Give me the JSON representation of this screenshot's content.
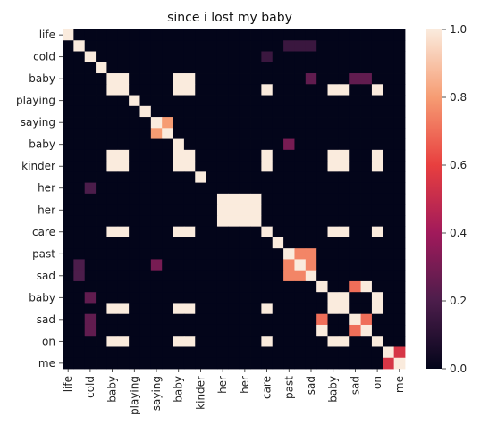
{
  "chart_data": {
    "type": "heatmap",
    "title": "since i lost my baby",
    "row_labels": [
      "life",
      "",
      "cold",
      "",
      "baby",
      "",
      "playing",
      "",
      "saying",
      "",
      "baby",
      "",
      "kinder",
      "",
      "her",
      "",
      "her",
      "",
      "care",
      "",
      "past",
      "",
      "sad",
      "",
      "baby",
      "",
      "sad",
      "",
      "on",
      "",
      "me"
    ],
    "col_labels": [
      "life",
      "",
      "cold",
      "",
      "baby",
      "",
      "playing",
      "",
      "saying",
      "",
      "baby",
      "",
      "kinder",
      "",
      "her",
      "",
      "her",
      "",
      "care",
      "",
      "past",
      "",
      "sad",
      "",
      "baby",
      "",
      "sad",
      "",
      "on",
      "",
      "me"
    ],
    "values": [
      [
        1,
        0,
        0,
        0,
        0,
        0,
        0,
        0,
        0,
        0,
        0,
        0,
        0,
        0,
        0,
        0,
        0,
        0,
        0,
        0,
        0,
        0,
        0,
        0,
        0,
        0,
        0,
        0,
        0,
        0,
        0
      ],
      [
        0,
        1,
        0,
        0,
        0,
        0,
        0,
        0,
        0,
        0,
        0,
        0,
        0,
        0,
        0,
        0,
        0,
        0,
        0,
        0,
        0.15,
        0.15,
        0.15,
        0,
        0,
        0,
        0,
        0,
        0,
        0,
        0
      ],
      [
        0,
        0,
        1,
        0,
        0,
        0,
        0,
        0,
        0,
        0,
        0,
        0,
        0,
        0,
        0,
        0,
        0,
        0,
        0.15,
        0,
        0,
        0,
        0,
        0,
        0,
        0,
        0,
        0,
        0,
        0,
        0
      ],
      [
        0,
        0,
        0,
        1,
        0,
        0,
        0,
        0,
        0,
        0,
        0,
        0,
        0,
        0,
        0,
        0,
        0,
        0,
        0,
        0,
        0,
        0,
        0,
        0,
        0,
        0,
        0,
        0,
        0,
        0,
        0
      ],
      [
        0,
        0,
        0,
        0,
        1,
        1,
        0,
        0,
        0,
        0,
        1,
        1,
        0,
        0,
        0,
        0,
        0,
        0,
        0,
        0,
        0,
        0,
        0.25,
        0,
        0,
        0,
        0.25,
        0.25,
        0,
        0,
        0
      ],
      [
        0,
        0,
        0,
        0,
        1,
        1,
        0,
        0,
        0,
        0,
        1,
        1,
        0,
        0,
        0,
        0,
        0,
        0,
        1,
        0,
        0,
        0,
        0,
        0,
        1,
        1,
        0,
        0,
        1,
        0,
        0
      ],
      [
        0,
        0,
        0,
        0,
        0,
        0,
        1,
        0,
        0,
        0,
        0,
        0,
        0,
        0,
        0,
        0,
        0,
        0,
        0,
        0,
        0,
        0,
        0,
        0,
        0,
        0,
        0,
        0,
        0,
        0,
        0
      ],
      [
        0,
        0,
        0,
        0,
        0,
        0,
        0,
        1,
        0,
        0,
        0,
        0,
        0,
        0,
        0,
        0,
        0,
        0,
        0,
        0,
        0,
        0,
        0,
        0,
        0,
        0,
        0,
        0,
        0,
        0,
        0
      ],
      [
        0,
        0,
        0,
        0,
        0,
        0,
        0,
        0,
        1,
        0.8,
        0,
        0,
        0,
        0,
        0,
        0,
        0,
        0,
        0,
        0,
        0,
        0,
        0,
        0,
        0,
        0,
        0,
        0,
        0,
        0,
        0
      ],
      [
        0,
        0,
        0,
        0,
        0,
        0,
        0,
        0,
        0.8,
        1,
        0,
        0,
        0,
        0,
        0,
        0,
        0,
        0,
        0,
        0,
        0,
        0,
        0,
        0,
        0,
        0,
        0,
        0,
        0,
        0,
        0
      ],
      [
        0,
        0,
        0,
        0,
        0,
        0,
        0,
        0,
        0,
        0,
        1,
        0,
        0,
        0,
        0,
        0,
        0,
        0,
        0,
        0,
        0.3,
        0,
        0,
        0,
        0,
        0,
        0,
        0,
        0,
        0,
        0
      ],
      [
        0,
        0,
        0,
        0,
        1,
        1,
        0,
        0,
        0,
        0,
        1,
        1,
        0,
        0,
        0,
        0,
        0,
        0,
        1,
        0,
        0,
        0,
        0,
        0,
        1,
        1,
        0,
        0,
        1,
        0,
        0
      ],
      [
        0,
        0,
        0,
        0,
        1,
        1,
        0,
        0,
        0,
        0,
        1,
        1,
        0,
        0,
        0,
        0,
        0,
        0,
        1,
        0,
        0,
        0,
        0,
        0,
        1,
        1,
        0,
        0,
        1,
        0,
        0
      ],
      [
        0,
        0,
        0,
        0,
        0,
        0,
        0,
        0,
        0,
        0,
        0,
        0,
        1,
        0,
        0,
        0,
        0,
        0,
        0,
        0,
        0,
        0,
        0,
        0,
        0,
        0,
        0,
        0,
        0,
        0,
        0
      ],
      [
        0,
        0,
        0.2,
        0,
        0,
        0,
        0,
        0,
        0,
        0,
        0,
        0,
        0,
        0,
        0,
        0,
        0,
        0,
        0,
        0,
        0,
        0,
        0,
        0,
        0,
        0,
        0,
        0,
        0,
        0,
        0
      ],
      [
        0,
        0,
        0,
        0,
        0,
        0,
        0,
        0,
        0,
        0,
        0,
        0,
        0,
        0,
        1,
        1,
        1,
        1,
        0,
        0,
        0,
        0,
        0,
        0,
        0,
        0,
        0,
        0,
        0,
        0,
        0
      ],
      [
        0,
        0,
        0,
        0,
        0,
        0,
        0,
        0,
        0,
        0,
        0,
        0,
        0,
        0,
        1,
        1,
        1,
        1,
        0,
        0,
        0,
        0,
        0,
        0,
        0,
        0,
        0,
        0,
        0,
        0,
        0
      ],
      [
        0,
        0,
        0,
        0,
        0,
        0,
        0,
        0,
        0,
        0,
        0,
        0,
        0,
        0,
        1,
        1,
        1,
        1,
        0,
        0,
        0,
        0,
        0,
        0,
        0,
        0,
        0,
        0,
        0,
        0,
        0
      ],
      [
        0,
        0,
        0,
        0,
        1,
        1,
        0,
        0,
        0,
        0,
        1,
        1,
        0,
        0,
        0,
        0,
        0,
        0,
        1,
        0,
        0,
        0,
        0,
        0,
        1,
        1,
        0,
        0,
        1,
        0,
        0
      ],
      [
        0,
        0,
        0,
        0,
        0,
        0,
        0,
        0,
        0,
        0,
        0,
        0,
        0,
        0,
        0,
        0,
        0,
        0,
        0,
        1,
        0,
        0,
        0,
        0,
        0,
        0,
        0,
        0,
        0,
        0,
        0
      ],
      [
        0,
        0,
        0,
        0,
        0,
        0,
        0,
        0,
        0,
        0,
        0,
        0,
        0,
        0,
        0,
        0,
        0,
        0,
        0,
        0,
        1,
        0.75,
        0.75,
        0,
        0,
        0,
        0,
        0,
        0,
        0,
        0
      ],
      [
        0,
        0.2,
        0,
        0,
        0,
        0,
        0,
        0,
        0.3,
        0,
        0,
        0,
        0,
        0,
        0,
        0,
        0,
        0,
        0,
        0,
        0.75,
        1,
        0.75,
        0,
        0,
        0,
        0,
        0,
        0,
        0,
        0
      ],
      [
        0,
        0.2,
        0,
        0,
        0,
        0,
        0,
        0,
        0,
        0,
        0,
        0,
        0,
        0,
        0,
        0,
        0,
        0,
        0,
        0,
        0.75,
        0.75,
        1,
        0,
        0,
        0,
        0,
        0,
        0,
        0,
        0
      ],
      [
        0,
        0,
        0,
        0,
        0,
        0,
        0,
        0,
        0,
        0,
        0,
        0,
        0,
        0,
        0,
        0,
        0,
        0,
        0,
        0,
        0,
        0,
        0,
        1,
        0,
        0,
        0.7,
        1,
        0,
        0,
        0
      ],
      [
        0,
        0,
        0.25,
        0,
        0,
        0,
        0,
        0,
        0,
        0,
        0,
        0,
        0,
        0,
        0,
        0,
        0,
        0,
        0,
        0,
        0,
        0,
        0,
        0,
        1,
        1,
        0,
        0,
        1,
        0,
        0
      ],
      [
        0,
        0,
        0,
        0,
        1,
        1,
        0,
        0,
        0,
        0,
        1,
        1,
        0,
        0,
        0,
        0,
        0,
        0,
        1,
        0,
        0,
        0,
        0,
        0,
        1,
        1,
        0,
        0,
        1,
        0,
        0
      ],
      [
        0,
        0,
        0.25,
        0,
        0,
        0,
        0,
        0,
        0,
        0,
        0,
        0,
        0,
        0,
        0,
        0,
        0,
        0,
        0,
        0,
        0,
        0,
        0,
        0.7,
        0,
        0,
        1,
        0.7,
        0,
        0,
        0
      ],
      [
        0,
        0,
        0.25,
        0,
        0,
        0,
        0,
        0,
        0,
        0,
        0,
        0,
        0,
        0,
        0,
        0,
        0,
        0,
        0,
        0,
        0,
        0,
        0,
        1,
        0,
        0,
        0.7,
        1,
        0,
        0,
        0
      ],
      [
        0,
        0,
        0,
        0,
        1,
        1,
        0,
        0,
        0,
        0,
        1,
        1,
        0,
        0,
        0,
        0,
        0,
        0,
        1,
        0,
        0,
        0,
        0,
        0,
        1,
        1,
        0,
        0,
        1,
        0,
        0
      ],
      [
        0,
        0,
        0,
        0,
        0,
        0,
        0,
        0,
        0,
        0,
        0,
        0,
        0,
        0,
        0,
        0,
        0,
        0,
        0,
        0,
        0,
        0,
        0,
        0,
        0,
        0,
        0,
        0,
        0,
        1,
        0.55
      ],
      [
        0,
        0,
        0,
        0,
        0,
        0,
        0,
        0,
        0,
        0,
        0,
        0,
        0,
        0,
        0,
        0,
        0,
        0,
        0,
        0,
        0,
        0,
        0,
        0,
        0,
        0,
        0,
        0,
        0,
        0.55,
        1
      ]
    ],
    "vmin": 0,
    "vmax": 1,
    "colorbar_ticks": [
      "0.0",
      "0.2",
      "0.4",
      "0.6",
      "0.8",
      "1.0"
    ],
    "colormap": "rocket",
    "colormap_stops": [
      "#03051a",
      "#4c1d4b",
      "#a11a5b",
      "#e83f3f",
      "#f69c73",
      "#faebdd"
    ]
  }
}
